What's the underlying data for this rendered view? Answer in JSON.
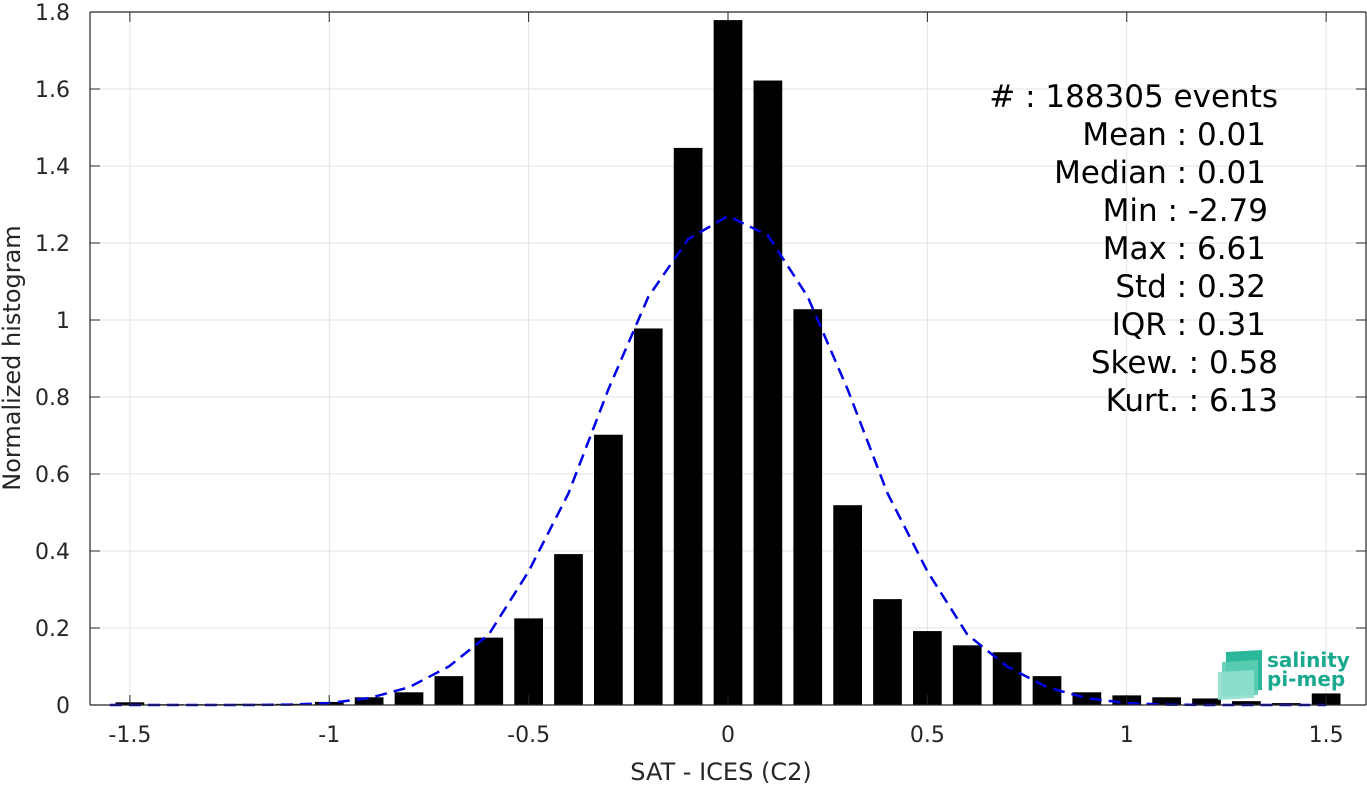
{
  "chart_data": {
    "type": "bar",
    "xlabel": "SAT - ICES (C2)",
    "ylabel": "Normalized histogram",
    "xlim": [
      -1.6,
      1.6
    ],
    "ylim": [
      0,
      1.8
    ],
    "grid": true,
    "xticks": [
      -1.5,
      -1,
      -0.5,
      0,
      0.5,
      1,
      1.5
    ],
    "xtick_labels": [
      "-1.5",
      "-1",
      "-0.5",
      "0",
      "0.5",
      "1",
      "1.5"
    ],
    "yticks": [
      0,
      0.2,
      0.4,
      0.6,
      0.8,
      1,
      1.2,
      1.4,
      1.6,
      1.8
    ],
    "ytick_labels": [
      "0",
      "0.2",
      "0.4",
      "0.6",
      "0.8",
      "1",
      "1.2",
      "1.4",
      "1.6",
      "1.8"
    ],
    "bar_color": "#000000",
    "bars": {
      "x": [
        -1.5,
        -1.4,
        -1.3,
        -1.2,
        -1.1,
        -1.0,
        -0.9,
        -0.8,
        -0.7,
        -0.6,
        -0.5,
        -0.4,
        -0.3,
        -0.2,
        -0.1,
        0.0,
        0.1,
        0.2,
        0.3,
        0.4,
        0.5,
        0.6,
        0.7,
        0.8,
        0.9,
        1.0,
        1.1,
        1.2,
        1.3,
        1.4,
        1.5
      ],
      "values": [
        0.007,
        0.002,
        0.002,
        0.003,
        0.003,
        0.008,
        0.02,
        0.033,
        0.075,
        0.175,
        0.225,
        0.392,
        0.702,
        0.978,
        1.447,
        1.779,
        1.622,
        1.028,
        0.519,
        0.275,
        0.192,
        0.155,
        0.137,
        0.075,
        0.033,
        0.025,
        0.02,
        0.017,
        0.01,
        0.005,
        0.03
      ]
    },
    "fit_curve": {
      "style": "dashed",
      "color": "#0000e6",
      "x": [
        -1.55,
        -1.5,
        -1.4,
        -1.3,
        -1.2,
        -1.1,
        -1.0,
        -0.9,
        -0.8,
        -0.7,
        -0.6,
        -0.5,
        -0.4,
        -0.3,
        -0.2,
        -0.1,
        0.0,
        0.1,
        0.2,
        0.3,
        0.4,
        0.5,
        0.6,
        0.7,
        0.8,
        0.9,
        1.0,
        1.1,
        1.2,
        1.3,
        1.4,
        1.5
      ],
      "y": [
        0.0,
        0.0,
        0.0,
        0.0,
        0.0,
        0.001,
        0.005,
        0.018,
        0.046,
        0.1,
        0.183,
        0.347,
        0.55,
        0.82,
        1.06,
        1.21,
        1.27,
        1.22,
        1.06,
        0.82,
        0.55,
        0.347,
        0.183,
        0.1,
        0.046,
        0.018,
        0.005,
        0.001,
        0.0,
        0.0,
        0.0,
        0.0
      ]
    },
    "annotations": [
      "#  : 188305 events",
      "Mean : 0.01",
      "Median : 0.01",
      "Min : -2.79",
      "Max : 6.61",
      "Std : 0.32",
      "IQR : 0.31",
      "Skew. : 0.58",
      "Kurt. : 6.13"
    ]
  },
  "logo": {
    "line1": "salinity",
    "line2": "pi-mep",
    "color": "#1aa88e"
  }
}
